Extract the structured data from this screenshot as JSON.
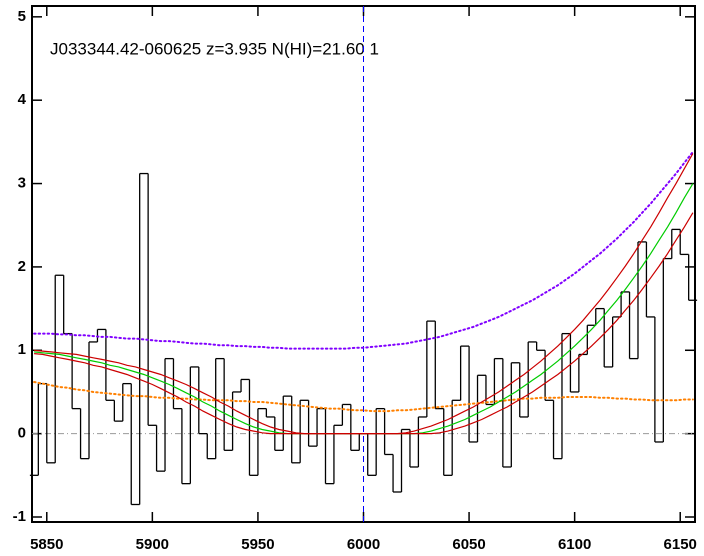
{
  "chart_data": {
    "type": "line",
    "title": "J033344.42-060625 z=3.935 N(HI)=21.60 1",
    "x": [
      5844,
      5848,
      5852,
      5856,
      5860,
      5864,
      5868,
      5872,
      5876,
      5880,
      5884,
      5888,
      5892,
      5896,
      5900,
      5904,
      5908,
      5912,
      5916,
      5920,
      5924,
      5928,
      5932,
      5936,
      5940,
      5944,
      5948,
      5952,
      5956,
      5960,
      5964,
      5968,
      5972,
      5976,
      5980,
      5984,
      5988,
      5992,
      5996,
      6000,
      6004,
      6008,
      6012,
      6016,
      6020,
      6024,
      6028,
      6032,
      6036,
      6040,
      6044,
      6048,
      6052,
      6056,
      6060,
      6064,
      6068,
      6072,
      6076,
      6080,
      6084,
      6088,
      6092,
      6096,
      6100,
      6104,
      6108,
      6112,
      6116,
      6120,
      6124,
      6128,
      6132,
      6136,
      6140,
      6144,
      6148,
      6152,
      6156
    ],
    "series": [
      {
        "color": "#000000",
        "style": "step",
        "values": [
          -0.5,
          0.6,
          -0.35,
          1.9,
          1.2,
          0.3,
          -0.3,
          1.1,
          1.25,
          0.4,
          0.15,
          0.6,
          -0.85,
          3.12,
          0.1,
          -0.45,
          0.9,
          0.3,
          -0.6,
          0.8,
          0.0,
          -0.3,
          0.9,
          -0.2,
          0.5,
          0.65,
          -0.5,
          0.3,
          0.2,
          -0.2,
          0.45,
          -0.35,
          0.4,
          -0.15,
          0.3,
          -0.6,
          0.1,
          0.35,
          -0.2,
          0.0,
          -0.5,
          0.3,
          -0.25,
          -0.7,
          0.05,
          -0.4,
          0.2,
          1.35,
          0.3,
          -0.5,
          0.4,
          1.05,
          -0.1,
          0.7,
          0.35,
          0.9,
          -0.4,
          0.85,
          0.2,
          1.1,
          1.0,
          0.4,
          -0.3,
          1.2,
          0.5,
          0.95,
          1.3,
          1.5,
          0.8,
          1.4,
          1.7,
          0.9,
          2.3,
          1.4,
          -0.1,
          2.1,
          2.45,
          2.15,
          1.6
        ]
      },
      {
        "color": "#8000ff",
        "style": "dotted",
        "values": [
          1.2,
          1.2,
          1.2,
          1.19,
          1.19,
          1.18,
          1.18,
          1.17,
          1.16,
          1.16,
          1.15,
          1.14,
          1.14,
          1.13,
          1.12,
          1.11,
          1.11,
          1.1,
          1.09,
          1.08,
          1.08,
          1.07,
          1.06,
          1.06,
          1.05,
          1.05,
          1.04,
          1.04,
          1.03,
          1.03,
          1.02,
          1.02,
          1.02,
          1.02,
          1.02,
          1.02,
          1.02,
          1.02,
          1.03,
          1.03,
          1.04,
          1.05,
          1.06,
          1.07,
          1.08,
          1.1,
          1.12,
          1.14,
          1.16,
          1.19,
          1.22,
          1.25,
          1.28,
          1.32,
          1.36,
          1.4,
          1.45,
          1.5,
          1.55,
          1.6,
          1.66,
          1.72,
          1.78,
          1.85,
          1.92,
          2.0,
          2.08,
          2.16,
          2.25,
          2.34,
          2.44,
          2.54,
          2.65,
          2.76,
          2.88,
          3.0,
          3.12,
          3.25,
          3.38
        ]
      },
      {
        "color": "#ff8000",
        "style": "dotted",
        "values": [
          0.62,
          0.6,
          0.58,
          0.56,
          0.55,
          0.53,
          0.52,
          0.5,
          0.49,
          0.48,
          0.47,
          0.46,
          0.45,
          0.45,
          0.44,
          0.43,
          0.43,
          0.42,
          0.42,
          0.41,
          0.41,
          0.4,
          0.4,
          0.4,
          0.39,
          0.39,
          0.38,
          0.38,
          0.37,
          0.36,
          0.35,
          0.34,
          0.33,
          0.32,
          0.31,
          0.3,
          0.3,
          0.29,
          0.28,
          0.28,
          0.27,
          0.27,
          0.27,
          0.28,
          0.28,
          0.29,
          0.3,
          0.31,
          0.32,
          0.33,
          0.34,
          0.35,
          0.36,
          0.37,
          0.38,
          0.39,
          0.4,
          0.41,
          0.42,
          0.42,
          0.43,
          0.43,
          0.43,
          0.44,
          0.44,
          0.44,
          0.44,
          0.43,
          0.43,
          0.42,
          0.42,
          0.41,
          0.41,
          0.4,
          0.4,
          0.4,
          0.4,
          0.41,
          0.41
        ]
      },
      {
        "color": "#00cc00",
        "style": "solid",
        "values": [
          0.98,
          0.97,
          0.96,
          0.95,
          0.93,
          0.91,
          0.89,
          0.87,
          0.85,
          0.82,
          0.8,
          0.77,
          0.74,
          0.71,
          0.67,
          0.63,
          0.59,
          0.54,
          0.49,
          0.44,
          0.38,
          0.33,
          0.27,
          0.22,
          0.17,
          0.12,
          0.08,
          0.05,
          0.03,
          0.01,
          0,
          0,
          0,
          0,
          0,
          0,
          0,
          0,
          0,
          0,
          0,
          0,
          0,
          0,
          0,
          0,
          0.01,
          0.03,
          0.06,
          0.09,
          0.13,
          0.17,
          0.22,
          0.27,
          0.32,
          0.38,
          0.44,
          0.5,
          0.57,
          0.64,
          0.71,
          0.79,
          0.87,
          0.96,
          1.05,
          1.15,
          1.25,
          1.36,
          1.48,
          1.6,
          1.73,
          1.87,
          2.01,
          2.16,
          2.32,
          2.48,
          2.65,
          2.83,
          3.0
        ]
      },
      {
        "color": "#cc0000",
        "style": "solid",
        "values": [
          1.0,
          0.99,
          0.98,
          0.97,
          0.96,
          0.95,
          0.93,
          0.91,
          0.89,
          0.87,
          0.85,
          0.82,
          0.8,
          0.77,
          0.74,
          0.71,
          0.67,
          0.63,
          0.59,
          0.54,
          0.49,
          0.44,
          0.38,
          0.33,
          0.27,
          0.22,
          0.17,
          0.12,
          0.08,
          0.05,
          0.03,
          0.01,
          0,
          0,
          0,
          0,
          0,
          0,
          0,
          0,
          0,
          0,
          0,
          0,
          0.01,
          0.03,
          0.06,
          0.09,
          0.13,
          0.17,
          0.22,
          0.27,
          0.32,
          0.38,
          0.44,
          0.5,
          0.57,
          0.64,
          0.71,
          0.79,
          0.87,
          0.96,
          1.05,
          1.15,
          1.25,
          1.36,
          1.48,
          1.6,
          1.73,
          1.87,
          2.01,
          2.16,
          2.32,
          2.48,
          2.65,
          2.83,
          3.0,
          3.18,
          3.36
        ]
      },
      {
        "color": "#cc0000",
        "style": "solid",
        "values": [
          0.96,
          0.95,
          0.93,
          0.91,
          0.89,
          0.87,
          0.85,
          0.82,
          0.8,
          0.77,
          0.74,
          0.71,
          0.67,
          0.63,
          0.59,
          0.54,
          0.49,
          0.44,
          0.38,
          0.33,
          0.27,
          0.22,
          0.17,
          0.12,
          0.08,
          0.05,
          0.03,
          0.01,
          0,
          0,
          0,
          0,
          0,
          0,
          0,
          0,
          0,
          0,
          0,
          0,
          0,
          0,
          0,
          0,
          0,
          0,
          0,
          0,
          0.01,
          0.03,
          0.06,
          0.09,
          0.13,
          0.17,
          0.22,
          0.27,
          0.32,
          0.38,
          0.44,
          0.5,
          0.57,
          0.64,
          0.71,
          0.79,
          0.87,
          0.96,
          1.05,
          1.15,
          1.25,
          1.36,
          1.48,
          1.6,
          1.73,
          1.87,
          2.01,
          2.16,
          2.32,
          2.48,
          2.65
        ]
      }
    ],
    "hlines": [
      {
        "y": 0,
        "color": "#999999"
      }
    ],
    "vlines": [
      {
        "x": 6000,
        "color": "#0000ff"
      }
    ],
    "xlim": [
      5843,
      6157
    ],
    "xticks": [
      5850,
      5900,
      5950,
      6000,
      6050,
      6100,
      6150
    ],
    "ylim": [
      -1.06,
      5.13
    ],
    "yticks": [
      -1,
      0,
      1,
      2,
      3,
      4,
      5
    ]
  }
}
